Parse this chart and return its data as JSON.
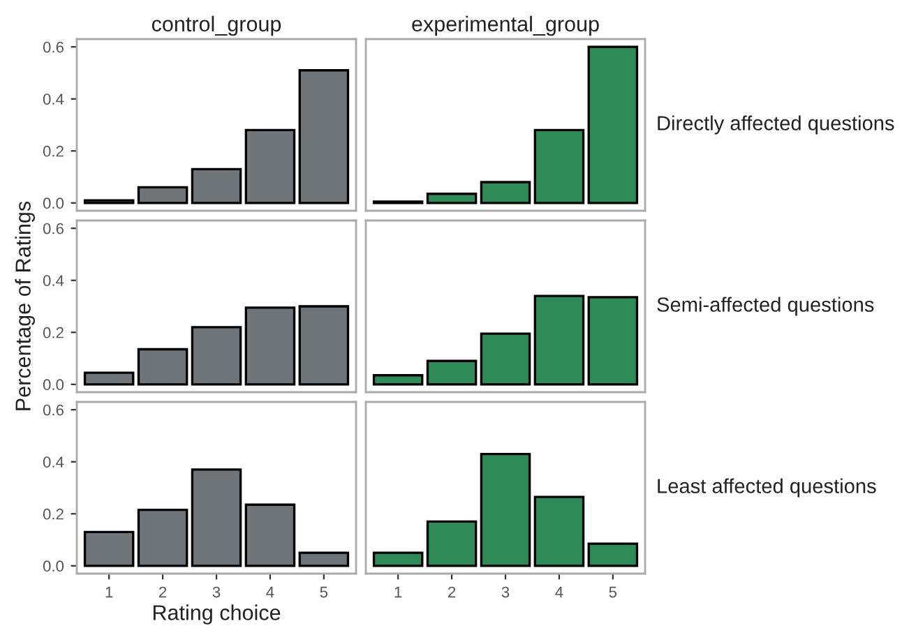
{
  "chart_data": [
    {
      "type": "bar",
      "title": "control_group",
      "categories": [
        "1",
        "2",
        "3",
        "4",
        "5"
      ],
      "series": [
        {
          "color": "#6e7478",
          "values": [
            0.01,
            0.06,
            0.13,
            0.28,
            0.51
          ]
        }
      ],
      "ylim": [
        -0.03,
        0.63
      ],
      "yticks": [
        {
          "value": 0,
          "label": "0.0"
        },
        {
          "value": 0.2,
          "label": "0.2"
        },
        {
          "value": 0.4,
          "label": "0.4"
        },
        {
          "value": 0.6,
          "label": "0.6"
        }
      ],
      "tick_labels": "y",
      "grid": false,
      "legend": false
    },
    {
      "type": "bar",
      "title": "experimental_group",
      "y2label": "Directly affected questions",
      "categories": [
        "1",
        "2",
        "3",
        "4",
        "5"
      ],
      "series": [
        {
          "color": "#2e8b57",
          "values": [
            0.005,
            0.035,
            0.08,
            0.28,
            0.6
          ]
        }
      ],
      "ylim": [
        -0.03,
        0.63
      ],
      "tick_labels": false,
      "grid": false,
      "legend": false
    },
    {
      "type": "bar",
      "ylabel": "Percentage of Ratings",
      "categories": [
        "1",
        "2",
        "3",
        "4",
        "5"
      ],
      "series": [
        {
          "color": "#6e7478",
          "values": [
            0.045,
            0.135,
            0.22,
            0.295,
            0.3
          ]
        }
      ],
      "ylim": [
        -0.03,
        0.63
      ],
      "yticks": [
        {
          "value": 0,
          "label": "0.0"
        },
        {
          "value": 0.2,
          "label": "0.2"
        },
        {
          "value": 0.4,
          "label": "0.4"
        },
        {
          "value": 0.6,
          "label": "0.6"
        }
      ],
      "tick_labels": "y",
      "grid": false,
      "legend": false
    },
    {
      "type": "bar",
      "y2label": "Semi-affected questions",
      "categories": [
        "1",
        "2",
        "3",
        "4",
        "5"
      ],
      "series": [
        {
          "color": "#2e8b57",
          "values": [
            0.035,
            0.09,
            0.195,
            0.34,
            0.335
          ]
        }
      ],
      "ylim": [
        -0.03,
        0.63
      ],
      "tick_labels": false,
      "grid": false,
      "legend": false
    },
    {
      "type": "bar",
      "xlabel": "Rating choice",
      "categories": [
        "1",
        "2",
        "3",
        "4",
        "5"
      ],
      "series": [
        {
          "color": "#6e7478",
          "values": [
            0.13,
            0.215,
            0.37,
            0.235,
            0.05
          ]
        }
      ],
      "ylim": [
        -0.03,
        0.63
      ],
      "yticks": [
        {
          "value": 0,
          "label": "0.0"
        },
        {
          "value": 0.2,
          "label": "0.2"
        },
        {
          "value": 0.4,
          "label": "0.4"
        },
        {
          "value": 0.6,
          "label": "0.6"
        }
      ],
      "grid": false,
      "legend": false
    },
    {
      "type": "bar",
      "y2label": "Least affected questions",
      "categories": [
        "1",
        "2",
        "3",
        "4",
        "5"
      ],
      "series": [
        {
          "color": "#2e8b57",
          "values": [
            0.05,
            0.17,
            0.43,
            0.265,
            0.085
          ]
        }
      ],
      "ylim": [
        -0.03,
        0.63
      ],
      "tick_labels": "x",
      "grid": false,
      "legend": false
    }
  ]
}
